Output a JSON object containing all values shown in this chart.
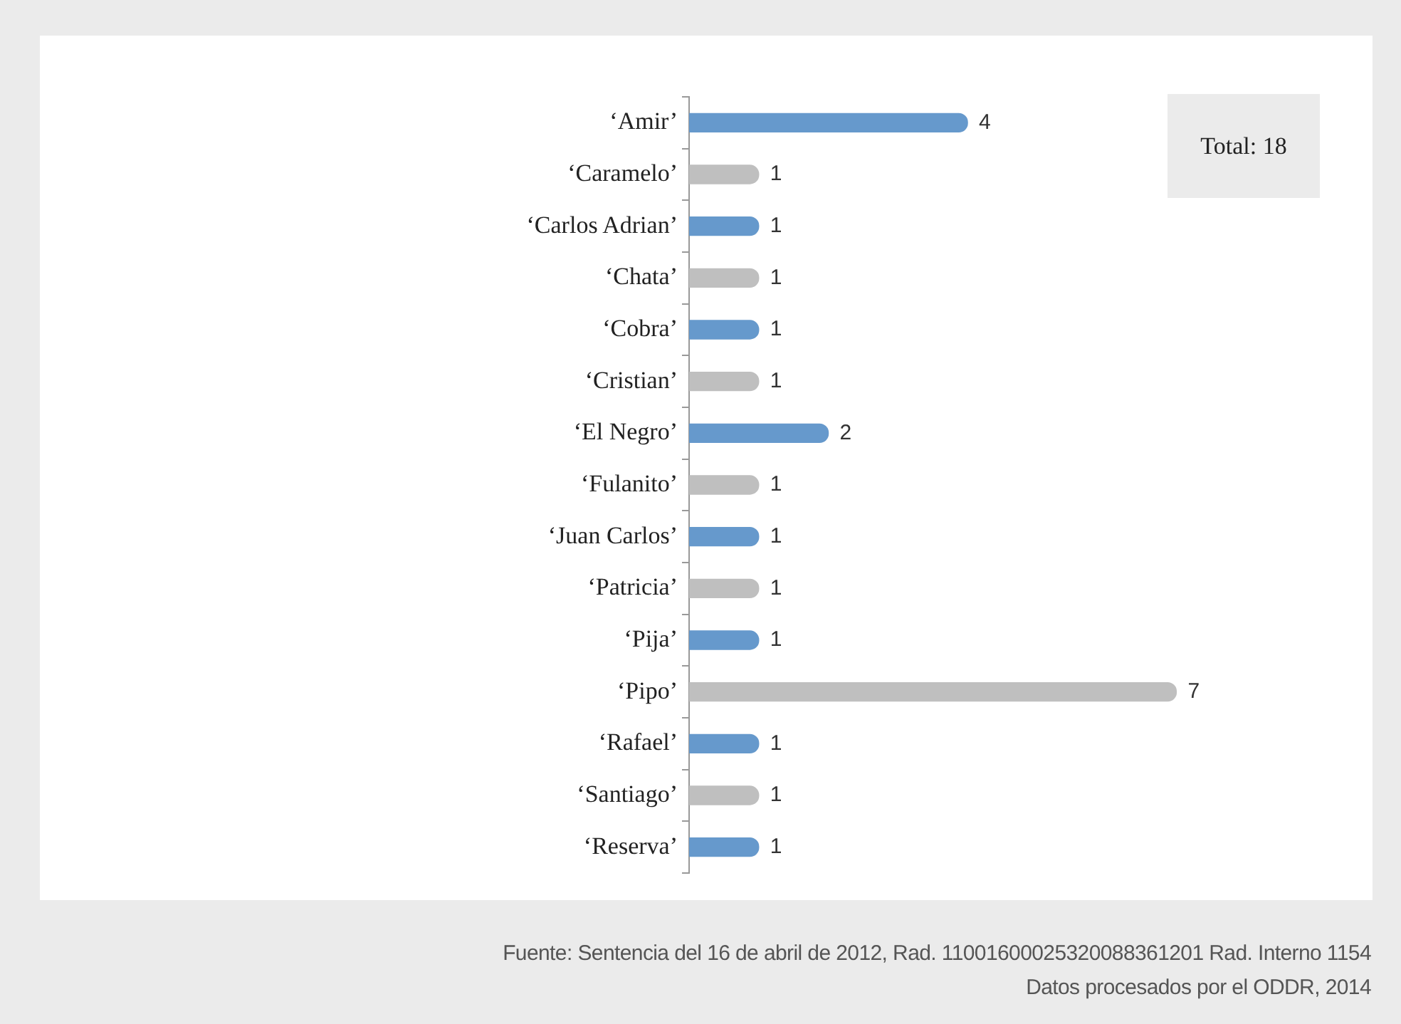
{
  "chart_data": {
    "type": "bar",
    "orientation": "horizontal",
    "categories": [
      "‘Amir’",
      "‘Caramelo’",
      "‘Carlos Adrian’",
      "‘Chata’",
      "‘Cobra’",
      "‘Cristian’",
      "‘El Negro’",
      "‘Fulanito’",
      "‘Juan Carlos’",
      "‘Patricia’",
      "‘Pija’",
      "‘Pipo’",
      "‘Rafael’",
      "‘Santiago’",
      "‘Reserva’"
    ],
    "values": [
      4,
      1,
      1,
      1,
      1,
      1,
      2,
      1,
      1,
      1,
      1,
      7,
      1,
      1,
      1
    ],
    "colors": [
      "#6699cc",
      "#bfbfbf",
      "#6699cc",
      "#bfbfbf",
      "#6699cc",
      "#bfbfbf",
      "#6699cc",
      "#bfbfbf",
      "#6699cc",
      "#bfbfbf",
      "#6699cc",
      "#bfbfbf",
      "#6699cc",
      "#bfbfbf",
      "#6699cc"
    ],
    "data_labels": true,
    "annotations": [
      "Total: 18",
      "Fuente: Sentencia del 16 de abril de 2012, Rad. 11001600025320088361201 Rad. Interno 1154",
      "Datos procesados por el ODDR, 2014"
    ]
  }
}
